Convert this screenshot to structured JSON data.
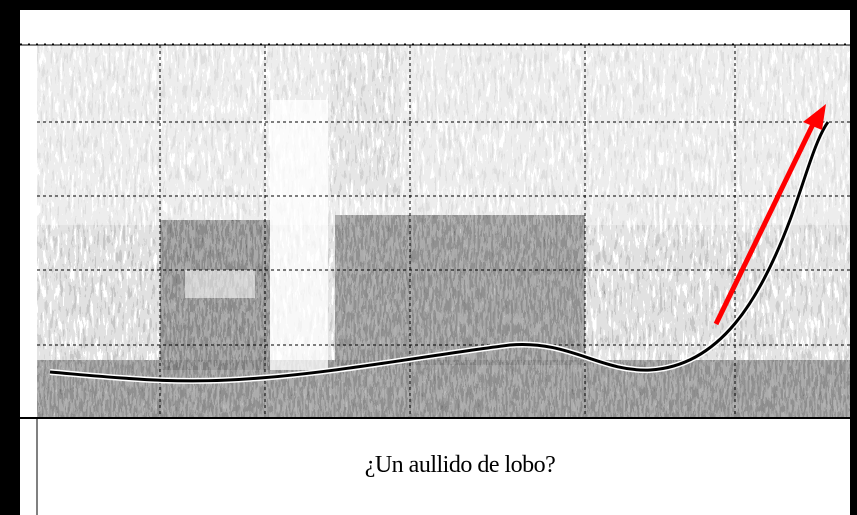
{
  "caption": "¿Un aullido de lobo?"
}
